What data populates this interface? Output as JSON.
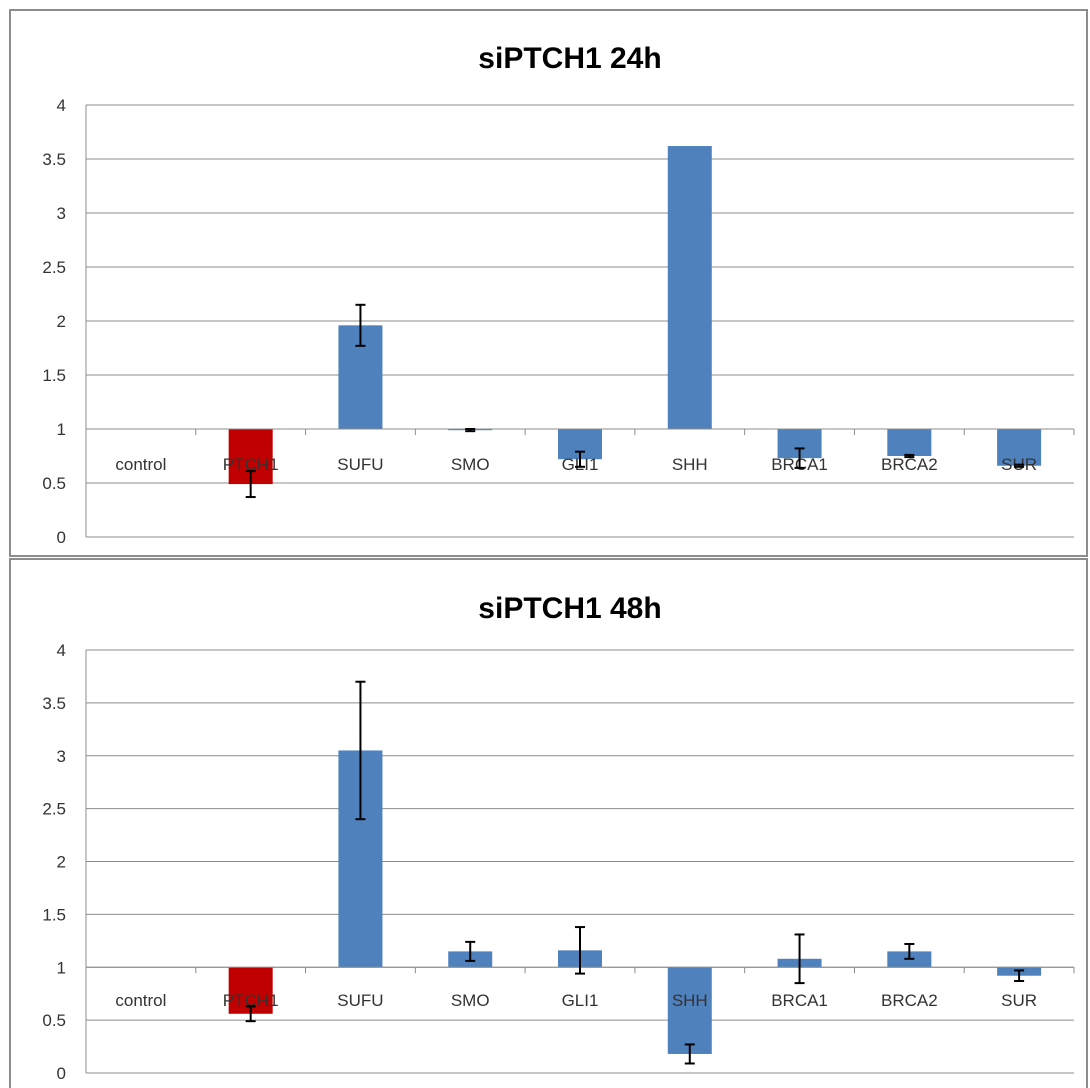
{
  "chart_data": [
    {
      "type": "bar",
      "title": "siPTCH1 24h",
      "categories": [
        "control",
        "PTCH1",
        "SUFU",
        "SMO",
        "GLI1",
        "SHH",
        "BRCA1",
        "BRCA2",
        "SUR"
      ],
      "baseline": 1,
      "ylim": [
        0,
        4
      ],
      "yticks": [
        "0",
        "0.5",
        "1",
        "1.5",
        "2",
        "2.5",
        "3",
        "3.5",
        "4"
      ],
      "grid": true,
      "values": [
        1,
        0.49,
        1.96,
        0.99,
        0.72,
        3.62,
        0.73,
        0.75,
        0.66
      ],
      "errors": [
        0,
        0.12,
        0.19,
        0.01,
        0.07,
        0,
        0.09,
        0.01,
        0.01
      ],
      "colors": [
        "#4f81bd",
        "#c00000",
        "#4f81bd",
        "#4f81bd",
        "#4f81bd",
        "#4f81bd",
        "#4f81bd",
        "#4f81bd",
        "#4f81bd"
      ]
    },
    {
      "type": "bar",
      "title": "siPTCH1 48h",
      "categories": [
        "control",
        "PTCH1",
        "SUFU",
        "SMO",
        "GLI1",
        "SHH",
        "BRCA1",
        "BRCA2",
        "SUR"
      ],
      "baseline": 1,
      "ylim": [
        0,
        4
      ],
      "yticks": [
        "0",
        "0.5",
        "1",
        "1.5",
        "2",
        "2.5",
        "3",
        "3.5",
        "4"
      ],
      "grid": true,
      "values": [
        1,
        0.56,
        3.05,
        1.15,
        1.16,
        0.18,
        1.08,
        1.15,
        0.92
      ],
      "errors": [
        0,
        0.07,
        0.65,
        0.09,
        0.22,
        0.09,
        0.23,
        0.07,
        0.05
      ],
      "colors": [
        "#4f81bd",
        "#c00000",
        "#4f81bd",
        "#4f81bd",
        "#4f81bd",
        "#4f81bd",
        "#4f81bd",
        "#4f81bd",
        "#4f81bd"
      ]
    }
  ]
}
